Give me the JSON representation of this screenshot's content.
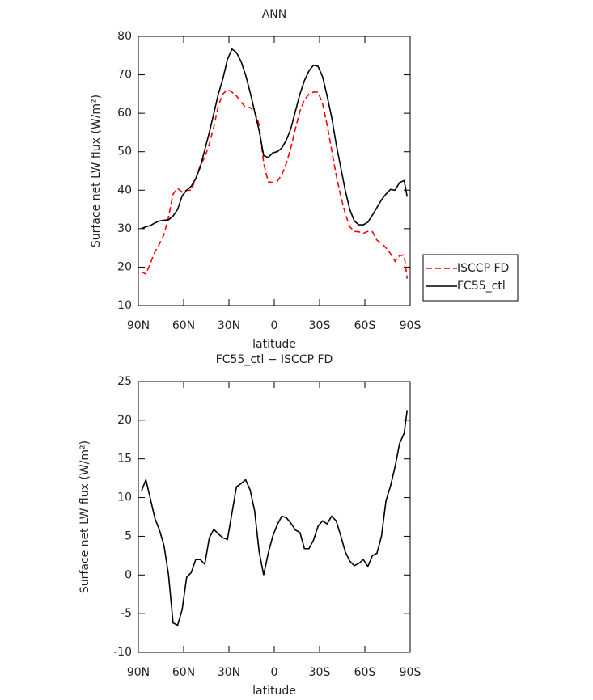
{
  "chart_data": [
    {
      "type": "line",
      "title": "ANN",
      "x_label": "latitude",
      "y_label": "Surface net LW flux (W/m²)",
      "x": [
        88,
        85,
        82,
        79,
        76,
        73,
        70,
        67,
        64,
        61,
        58,
        55,
        52,
        49,
        46,
        43,
        40,
        37,
        34,
        31,
        28,
        25,
        22,
        19,
        16,
        13,
        10,
        7,
        4,
        1,
        -2,
        -5,
        -8,
        -11,
        -14,
        -17,
        -20,
        -23,
        -26,
        -29,
        -32,
        -35,
        -38,
        -41,
        -44,
        -47,
        -50,
        -53,
        -56,
        -59,
        -62,
        -65,
        -68,
        -71,
        -74,
        -77,
        -80,
        -83,
        -86,
        -88
      ],
      "series": [
        {
          "name": "ISCCP FD",
          "color": "#ff0000",
          "linestyle": "dashed",
          "values": [
            18.8,
            18.2,
            21,
            24,
            26,
            28.5,
            33,
            39,
            40.5,
            39.5,
            40,
            40,
            43,
            46.5,
            48.5,
            52,
            56.5,
            62,
            65,
            66.2,
            65.5,
            64.5,
            63,
            61.5,
            61.5,
            60.5,
            57,
            47,
            42.2,
            42,
            42.3,
            44,
            47,
            51,
            56,
            60.5,
            63.5,
            65,
            65.5,
            65.5,
            62.5,
            57,
            50.5,
            44,
            38.5,
            34,
            30.5,
            29.3,
            29.2,
            28.8,
            29.3,
            29.2,
            27,
            26.2,
            25,
            23.5,
            21.5,
            23,
            23.2,
            17
          ]
        },
        {
          "name": "FC55_ctl",
          "color": "#000000",
          "linestyle": "solid",
          "values": [
            30,
            30.5,
            30.8,
            31.5,
            32,
            32.2,
            32.3,
            33.3,
            35,
            38.5,
            40,
            41,
            43,
            46,
            50.5,
            55,
            60,
            65,
            69,
            74,
            76.7,
            75.8,
            73.5,
            70,
            65.5,
            60.5,
            55.5,
            49,
            48.5,
            49.7,
            50,
            51,
            53,
            56,
            60.5,
            65,
            68.5,
            71,
            72.5,
            72.2,
            69.5,
            64.5,
            59,
            52,
            46,
            40,
            35,
            32,
            31,
            31,
            31.7,
            33.5,
            35.5,
            37.5,
            39,
            40.2,
            40,
            42,
            42.5,
            38.3
          ]
        }
      ],
      "xlim": [
        90,
        -90
      ],
      "xticks": [
        {
          "value": 90,
          "label": "90N"
        },
        {
          "value": 60,
          "label": "60N"
        },
        {
          "value": 30,
          "label": "30N"
        },
        0,
        {
          "value": -30,
          "label": "30S"
        },
        {
          "value": -60,
          "label": "60S"
        },
        {
          "value": -90,
          "label": "90S"
        }
      ],
      "ylim": [
        10,
        80
      ],
      "yticks": [
        10,
        20,
        30,
        40,
        50,
        60,
        70,
        80
      ],
      "legend": "outside-right"
    },
    {
      "type": "line",
      "title": "FC55_ctl − ISCCP FD",
      "x_label": "latitude",
      "y_label": "Surface net LW flux (W/m²)",
      "x": [
        88,
        85,
        82,
        79,
        76,
        73,
        70,
        67,
        64,
        61,
        58,
        55,
        52,
        49,
        46,
        43,
        40,
        37,
        34,
        31,
        28,
        25,
        22,
        19,
        16,
        13,
        10,
        7,
        4,
        1,
        -2,
        -5,
        -8,
        -11,
        -14,
        -17,
        -20,
        -23,
        -26,
        -29,
        -32,
        -35,
        -38,
        -41,
        -44,
        -47,
        -50,
        -53,
        -56,
        -59,
        -62,
        -65,
        -68,
        -71,
        -74,
        -77,
        -80,
        -83,
        -86,
        -88
      ],
      "color": "#000000",
      "values": [
        10.8,
        12.3,
        9.8,
        7.3,
        5.8,
        3.8,
        0,
        -6.2,
        -6.5,
        -4.5,
        -0.3,
        0.3,
        2,
        2,
        1.4,
        4.8,
        5.9,
        5.3,
        4.8,
        4.6,
        8,
        11.4,
        11.8,
        12.3,
        11,
        8.3,
        3,
        0,
        2.8,
        5,
        6.5,
        7.6,
        7.4,
        6.7,
        5.8,
        5.5,
        3.4,
        3.4,
        4.5,
        6.3,
        7,
        6.6,
        7.6,
        7,
        5.1,
        3,
        1.8,
        1.2,
        1.5,
        2,
        1.1,
        2.5,
        2.8,
        5,
        9.6,
        11.5,
        14,
        17,
        18.3,
        21.3
      ],
      "xlim": [
        90,
        -90
      ],
      "xticks": [
        {
          "value": 90,
          "label": "90N"
        },
        {
          "value": 60,
          "label": "60N"
        },
        {
          "value": 30,
          "label": "30N"
        },
        0,
        {
          "value": -30,
          "label": "30S"
        },
        {
          "value": -60,
          "label": "60S"
        },
        {
          "value": -90,
          "label": "90S"
        }
      ],
      "ylim": [
        -10,
        25
      ],
      "yticks": [
        -10,
        -5,
        0,
        5,
        10,
        15,
        20,
        25
      ]
    }
  ]
}
